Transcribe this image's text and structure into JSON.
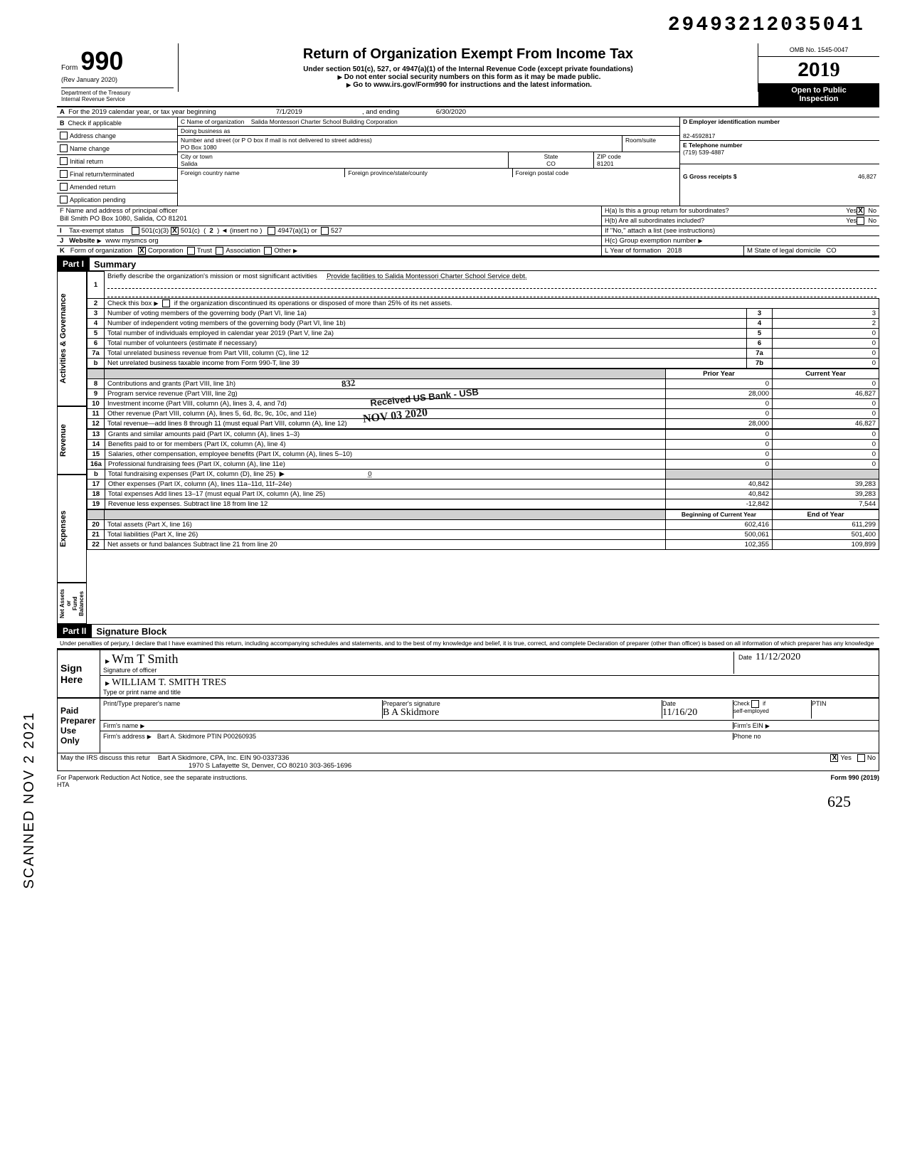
{
  "doc_id": "29493212035041",
  "scanned_stamp": "SCANNED NOV 2 2021",
  "header": {
    "form_word": "Form",
    "form_number": "990",
    "rev": "(Rev  January 2020)",
    "dept": "Department of the Treasury\nInternal Revenue Service",
    "title": "Return of Organization Exempt From Income Tax",
    "subtitle": "Under section 501(c), 527, or 4947(a)(1) of the Internal Revenue Code (except private foundations)",
    "sub_warn": "Do not enter social security numbers on this form as it may be made public.",
    "sub_go": "Go to www.irs.gov/Form990 for instructions and the latest information.",
    "omb": "OMB No. 1545-0047",
    "year_prefix": "20",
    "year": "19",
    "open1": "Open to Public",
    "open2": "Inspection"
  },
  "lineA": {
    "label_a": "A",
    "text1": "For the 2019 calendar year, or tax year beginning",
    "begin": "7/1/2019",
    "text2": ", and ending",
    "end": "6/30/2020"
  },
  "colB": {
    "hdr": "B",
    "hdr2": "Check if applicable",
    "opts": [
      "Address change",
      "Name change",
      "Initial return",
      "Final return/terminated",
      "Amended return",
      "Application pending"
    ]
  },
  "colC": {
    "label": "C  Name of organization",
    "name": "Salida Montessori Charter School Building Corporation",
    "dba_lbl": "Doing business as",
    "street_lbl": "Number and street (or P O  box if mail is not delivered to street address)",
    "room_lbl": "Room/suite",
    "street": "PO Box 1080",
    "city_lbl": "City or town",
    "city": "Salida",
    "state_lbl": "State",
    "state": "CO",
    "zip_lbl": "ZIP code",
    "zip": "81201",
    "foreign_country_lbl": "Foreign country name",
    "foreign_prov_lbl": "Foreign province/state/county",
    "foreign_post_lbl": "Foreign postal code"
  },
  "colD": {
    "label": "D   Employer identification number",
    "ein": "82-4592817",
    "e_label": "E   Telephone number",
    "phone": "(719) 539-4887",
    "g_label": "G   Gross receipts $",
    "g_val": "46,827"
  },
  "rowF": {
    "label": "F  Name and address of principal officer",
    "val": "Bill Smith PO Box 1080, Salida, CO  81201"
  },
  "rowH": {
    "a": "H(a) Is this a group return for subordinates?",
    "b": "H(b) Are all subordinates included?",
    "note": "If \"No,\" attach a list  (see instructions)",
    "c": "H(c) Group exemption number",
    "yes": "Yes",
    "no": "No"
  },
  "rowI": {
    "label": "I",
    "text": "Tax-exempt status",
    "c3": "501(c)(3)",
    "c": "501(c)",
    "insert": "(insert no )",
    "num": "2",
    "a1": "4947(a)(1) or",
    "527": "527"
  },
  "rowJ": {
    "label": "J",
    "text": "Website",
    "val": "www mysmcs org"
  },
  "rowK": {
    "label": "K",
    "text": "Form of organization",
    "corp": "Corporation",
    "trust": "Trust",
    "assoc": "Association",
    "other": "Other",
    "L": "L Year of formation",
    "Lval": "2018",
    "M": "M State of legal domicile",
    "Mval": "CO"
  },
  "part1": {
    "hdr": "Part I",
    "title": "Summary",
    "vtab_gov": "Activities & Governance",
    "vtab_rev": "Revenue",
    "vtab_exp": "Expenses",
    "vtab_na": "Net Assets or\nFund Balances",
    "line1_num": "1",
    "line1": "Briefly describe the organization's mission or most significant activities",
    "line1_val": "Provide facilities to Salida Montessori Charter School  Service debt.",
    "line2_num": "2",
    "line2": "Check this box",
    "line2b": "if the organization discontinued its operations or disposed of more than 25% of its net assets.",
    "rows_gov": [
      {
        "n": "3",
        "t": "Number of voting members of the governing body (Part VI, line 1a)",
        "c": "3",
        "v": "3"
      },
      {
        "n": "4",
        "t": "Number of independent voting members of the governing body (Part VI, line 1b)",
        "c": "4",
        "v": "2"
      },
      {
        "n": "5",
        "t": "Total number of individuals employed in calendar year 2019 (Part V, line 2a)",
        "c": "5",
        "v": "0"
      },
      {
        "n": "6",
        "t": "Total number of volunteers (estimate if necessary)",
        "c": "6",
        "v": "0"
      },
      {
        "n": "7a",
        "t": "Total unrelated business revenue from Part VIII, column (C), line 12",
        "c": "7a",
        "v": "0"
      },
      {
        "n": "b",
        "t": "Net unrelated business taxable income from Form 990-T, line 39",
        "c": "7b",
        "v": "0"
      }
    ],
    "col_prior": "Prior Year",
    "col_curr": "Current Year",
    "rows_rev": [
      {
        "n": "8",
        "t": "Contributions and grants (Part VIII, line 1h)",
        "p": "0",
        "c": "0"
      },
      {
        "n": "9",
        "t": "Program service revenue (Part VIII, line 2g)",
        "p": "28,000",
        "c": "46,827"
      },
      {
        "n": "10",
        "t": "Investment income (Part VIII, column (A), lines 3, 4, and 7d)",
        "p": "0",
        "c": "0"
      },
      {
        "n": "11",
        "t": "Other revenue (Part VIII, column (A), lines 5, 6d, 8c, 9c, 10c, and 11e)",
        "p": "0",
        "c": "0"
      },
      {
        "n": "12",
        "t": "Total revenue—add lines 8 through 11 (must equal Part VIII, column (A), line 12)",
        "p": "28,000",
        "c": "46,827"
      }
    ],
    "rows_exp": [
      {
        "n": "13",
        "t": "Grants and similar amounts paid (Part IX, column (A), lines 1–3)",
        "p": "0",
        "c": "0"
      },
      {
        "n": "14",
        "t": "Benefits paid to or for members (Part IX, column (A), line 4)",
        "p": "0",
        "c": "0"
      },
      {
        "n": "15",
        "t": "Salaries, other compensation, employee benefits (Part IX, column (A), lines 5–10)",
        "p": "0",
        "c": "0"
      },
      {
        "n": "16a",
        "t": "Professional fundraising fees (Part IX, column (A), line 11e)",
        "p": "0",
        "c": "0"
      },
      {
        "n": "b",
        "t": "Total fundraising expenses (Part IX, column (D), line 25)",
        "p": "",
        "c": "",
        "inline": "0"
      },
      {
        "n": "17",
        "t": "Other expenses (Part IX, column (A), lines 11a–11d, 11f–24e)",
        "p": "40,842",
        "c": "39,283"
      },
      {
        "n": "18",
        "t": "Total expenses  Add lines 13–17 (must equal Part IX, column (A), line 25)",
        "p": "40,842",
        "c": "39,283"
      },
      {
        "n": "19",
        "t": "Revenue less expenses. Subtract line 18 from line 12",
        "p": "-12,842",
        "c": "7,544"
      }
    ],
    "col_begin": "Beginning of Current Year",
    "col_end": "End of Year",
    "rows_na": [
      {
        "n": "20",
        "t": "Total assets (Part X, line 16)",
        "p": "602,416",
        "c": "611,299"
      },
      {
        "n": "21",
        "t": "Total liabilities (Part X, line 26)",
        "p": "500,061",
        "c": "501,400"
      },
      {
        "n": "22",
        "t": "Net assets or fund balances  Subtract line 21 from line 20",
        "p": "102,355",
        "c": "109,899"
      }
    ],
    "stamp1": "Received US Bank - USB",
    "stamp2": "NOV 03 2020",
    "stamp3": "832"
  },
  "part2": {
    "hdr": "Part II",
    "title": "Signature Block",
    "perjury": "Under penalties of perjury, I declare that I have examined this return, including accompanying schedules and statements, and to the best of my knowledge and belief, it is true, correct, and complete  Declaration of preparer (other than officer) is based on all information of which preparer has any knowledge",
    "sign": "Sign",
    "here": "Here",
    "sig_lbl": "Signature of officer",
    "sig_date_lbl": "Date",
    "sig_date": "11/12/2020",
    "printed_name": "WILLIAM T. SMITH   TRES",
    "type_lbl": "Type or print name and title",
    "paid": "Paid",
    "preparer": "Preparer",
    "useonly": "Use Only",
    "pt_lbl": "Print/Type preparer's name",
    "ps_lbl": "Preparer's signature",
    "pdate_lbl": "Date",
    "pdate": "11/16/20",
    "check_lbl": "Check",
    "if_lbl": "if",
    "self_lbl": "self-employed",
    "ptin_lbl": "PTIN",
    "firm_name_lbl": "Firm's name",
    "firm_addr_lbl": "Firm's address",
    "firm_ein_lbl": "Firm's EIN",
    "phone_lbl": "Phone no",
    "preparer_info1": "Bart A. Skidmore  PTIN P00260935",
    "preparer_info2": "Bart A  Skidmore, CPA, Inc.     EIN  90-0337336",
    "preparer_info3": "1970 S  Lafayette St, Denver, CO 80210  303-365-1696",
    "discuss": "May the IRS discuss this retur",
    "yes": "Yes",
    "no": "No"
  },
  "footer": {
    "left": "For Paperwork Reduction Act Notice, see the separate instructions.",
    "hta": "HTA",
    "right": "Form 990 (2019)"
  },
  "scribble": "625"
}
